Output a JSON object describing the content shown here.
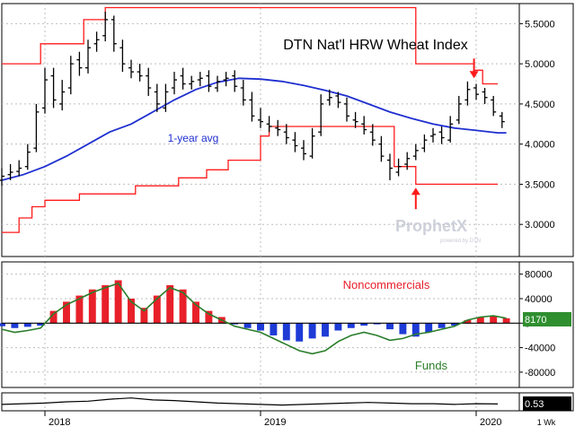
{
  "chart_data": [
    {
      "type": "line",
      "title": "DTN Nat'l HRW Wheat Index",
      "annotations": [
        "1-year avg"
      ],
      "ylim": [
        2.6,
        5.75
      ],
      "y_ticks": [
        "5.5000",
        "5.0000",
        "4.5000",
        "4.0000",
        "3.5000",
        "3.0000"
      ],
      "y_tick_values": [
        5.5,
        5.0,
        4.5,
        4.0,
        3.5,
        3.0
      ],
      "x_ticks": [
        "2018",
        "2019",
        "2020"
      ],
      "x_tick_values": [
        2018.0,
        2019.0,
        2020.0
      ],
      "xlim": [
        2017.8,
        2020.2
      ],
      "grid": true,
      "colors": {
        "price": "#000000",
        "average": "#1f2fd0",
        "bands": "#ff1a1a",
        "arrow": "#ff1a1a"
      },
      "price_weekly": {
        "x": [
          2017.8,
          2017.84,
          2017.88,
          2017.92,
          2017.96,
          2018.0,
          2018.04,
          2018.08,
          2018.12,
          2018.16,
          2018.2,
          2018.24,
          2018.28,
          2018.32,
          2018.36,
          2018.4,
          2018.44,
          2018.48,
          2018.52,
          2018.56,
          2018.6,
          2018.64,
          2018.68,
          2018.72,
          2018.76,
          2018.8,
          2018.84,
          2018.88,
          2018.92,
          2018.96,
          2019.0,
          2019.04,
          2019.08,
          2019.12,
          2019.16,
          2019.2,
          2019.24,
          2019.28,
          2019.32,
          2019.36,
          2019.4,
          2019.44,
          2019.48,
          2019.52,
          2019.56,
          2019.6,
          2019.64,
          2019.68,
          2019.72,
          2019.76,
          2019.8,
          2019.84,
          2019.88,
          2019.92,
          2019.96,
          2020.0,
          2020.04,
          2020.08,
          2020.12
        ],
        "open": [
          3.55,
          3.62,
          3.66,
          3.72,
          3.95,
          4.45,
          4.85,
          4.5,
          4.7,
          5.05,
          4.95,
          5.25,
          5.35,
          5.55,
          5.2,
          4.95,
          4.9,
          4.85,
          4.65,
          4.45,
          4.7,
          4.85,
          4.75,
          4.8,
          4.85,
          4.7,
          4.8,
          4.85,
          4.7,
          4.55,
          4.3,
          4.25,
          4.2,
          4.15,
          4.05,
          3.95,
          3.85,
          4.15,
          4.55,
          4.6,
          4.5,
          4.3,
          4.25,
          4.15,
          4.0,
          3.8,
          3.65,
          3.75,
          3.85,
          3.95,
          4.1,
          4.15,
          4.05,
          4.3,
          4.55,
          4.7,
          4.65,
          4.55,
          4.35
        ],
        "close": [
          3.6,
          3.65,
          3.7,
          3.9,
          4.4,
          4.8,
          4.55,
          4.65,
          5.0,
          4.95,
          5.2,
          5.3,
          5.55,
          5.25,
          5.0,
          4.9,
          4.85,
          4.7,
          4.5,
          4.65,
          4.8,
          4.75,
          4.78,
          4.82,
          4.72,
          4.78,
          4.82,
          4.72,
          4.55,
          4.35,
          4.28,
          4.22,
          4.18,
          4.08,
          3.98,
          3.88,
          4.1,
          4.5,
          4.58,
          4.52,
          4.35,
          4.28,
          4.18,
          4.05,
          3.85,
          3.7,
          3.72,
          3.82,
          3.92,
          4.05,
          4.12,
          4.08,
          4.25,
          4.5,
          4.68,
          4.62,
          4.58,
          4.4,
          4.28
        ],
        "high": [
          3.7,
          3.75,
          3.8,
          4.0,
          4.5,
          4.95,
          4.95,
          4.8,
          5.1,
          5.15,
          5.3,
          5.4,
          5.65,
          5.6,
          5.3,
          5.05,
          5.0,
          4.95,
          4.75,
          4.75,
          4.9,
          4.95,
          4.85,
          4.9,
          4.92,
          4.85,
          4.9,
          4.92,
          4.8,
          4.65,
          4.45,
          4.35,
          4.3,
          4.25,
          4.15,
          4.05,
          4.2,
          4.62,
          4.68,
          4.65,
          4.58,
          4.4,
          4.35,
          4.25,
          4.1,
          3.88,
          3.82,
          3.9,
          4.0,
          4.12,
          4.2,
          4.22,
          4.35,
          4.6,
          4.78,
          4.75,
          4.7,
          4.6,
          4.4
        ],
        "low": [
          3.48,
          3.55,
          3.6,
          3.68,
          3.9,
          4.38,
          4.45,
          4.42,
          4.62,
          4.85,
          4.88,
          5.15,
          5.28,
          5.15,
          4.9,
          4.82,
          4.78,
          4.6,
          4.4,
          4.4,
          4.62,
          4.68,
          4.68,
          4.72,
          4.65,
          4.65,
          4.72,
          4.65,
          4.48,
          4.28,
          4.2,
          4.15,
          4.1,
          4.0,
          3.9,
          3.8,
          3.82,
          4.1,
          4.48,
          4.45,
          4.28,
          4.2,
          4.12,
          3.98,
          3.78,
          3.55,
          3.6,
          3.68,
          3.8,
          3.9,
          4.02,
          4.0,
          4.02,
          4.25,
          4.48,
          4.55,
          4.5,
          4.35,
          4.2
        ]
      },
      "series": [
        {
          "name": "1-year avg",
          "x": [
            2017.8,
            2017.9,
            2018.0,
            2018.1,
            2018.2,
            2018.3,
            2018.4,
            2018.5,
            2018.6,
            2018.7,
            2018.8,
            2018.9,
            2019.0,
            2019.1,
            2019.2,
            2019.3,
            2019.4,
            2019.5,
            2019.6,
            2019.7,
            2019.8,
            2019.9,
            2020.0,
            2020.1,
            2020.14
          ],
          "values": [
            3.55,
            3.62,
            3.72,
            3.85,
            4.0,
            4.15,
            4.25,
            4.4,
            4.55,
            4.68,
            4.77,
            4.82,
            4.81,
            4.78,
            4.73,
            4.67,
            4.6,
            4.5,
            4.4,
            4.32,
            4.25,
            4.2,
            4.17,
            4.14,
            4.14
          ]
        },
        {
          "name": "",
          "x": [
            2017.8,
            2017.98,
            2017.98,
            2018.18,
            2018.18,
            2018.28,
            2018.28,
            2018.65,
            2018.65,
            2018.72,
            2018.72,
            2018.9,
            2018.9,
            2018.99,
            2018.99,
            2019.02,
            2019.02,
            2019.12,
            2019.12,
            2019.2,
            2019.2,
            2019.3,
            2019.3,
            2019.4,
            2019.4,
            2019.62,
            2019.62,
            2019.72,
            2019.72,
            2019.99,
            2019.99,
            2020.03,
            2020.03,
            2020.1
          ],
          "values": [
            5.0,
            5.0,
            5.25,
            5.25,
            5.55,
            5.55,
            5.7,
            5.7,
            5.7,
            5.7,
            5.7,
            5.7,
            5.7,
            5.7,
            5.7,
            5.7,
            5.7,
            5.7,
            5.7,
            5.7,
            5.7,
            5.7,
            5.7,
            5.7,
            5.7,
            5.7,
            5.7,
            5.7,
            5.0,
            5.0,
            4.92,
            4.92,
            4.75,
            4.75
          ]
        },
        {
          "name": "",
          "x": [
            2017.8,
            2017.88,
            2017.88,
            2017.94,
            2017.94,
            2018.0,
            2018.0,
            2018.16,
            2018.16,
            2018.42,
            2018.42,
            2018.62,
            2018.62,
            2018.75,
            2018.75,
            2018.85,
            2018.85,
            2019.0,
            2019.0,
            2019.04,
            2019.04,
            2019.3,
            2019.3,
            2019.62,
            2019.62,
            2019.72,
            2019.72,
            2020.1
          ],
          "values": [
            2.9,
            2.9,
            3.08,
            3.08,
            3.22,
            3.22,
            3.3,
            3.3,
            3.38,
            3.38,
            3.48,
            3.48,
            3.58,
            3.58,
            3.68,
            3.68,
            3.8,
            3.8,
            4.1,
            4.1,
            4.22,
            4.22,
            4.22,
            4.22,
            3.72,
            3.72,
            3.5,
            3.5
          ]
        }
      ]
    },
    {
      "type": "bar",
      "annotations": [
        "Noncommercials",
        "Funds"
      ],
      "ylim": [
        -105000,
        100000
      ],
      "y_ticks": [
        "80000",
        "40000",
        "0",
        "-40000",
        "-80000"
      ],
      "y_tick_values": [
        80000,
        40000,
        0,
        -40000,
        -80000
      ],
      "value_label": "8170",
      "colors": {
        "positive_bars": "#e8202a",
        "negative_bars": "#1e3bd6",
        "funds_line": "#2a7d2a",
        "value_badge": "#2f8f2f"
      },
      "series": [
        {
          "name": "Noncommercials",
          "x": [
            2017.8,
            2017.86,
            2017.92,
            2017.98,
            2018.04,
            2018.1,
            2018.16,
            2018.22,
            2018.28,
            2018.34,
            2018.4,
            2018.46,
            2018.52,
            2018.58,
            2018.64,
            2018.7,
            2018.76,
            2018.82,
            2018.88,
            2018.94,
            2019.0,
            2019.06,
            2019.12,
            2019.18,
            2019.24,
            2019.3,
            2019.36,
            2019.42,
            2019.48,
            2019.54,
            2019.6,
            2019.66,
            2019.72,
            2019.78,
            2019.84,
            2019.9,
            2019.96,
            2020.02,
            2020.08,
            2020.14
          ],
          "values": [
            -5000,
            -8000,
            -6000,
            -4000,
            20000,
            35000,
            45000,
            55000,
            62000,
            70000,
            40000,
            25000,
            45000,
            62000,
            55000,
            35000,
            20000,
            10000,
            -2000,
            -8000,
            -12000,
            -20000,
            -28000,
            -30000,
            -25000,
            -22000,
            -12000,
            -8000,
            -4000,
            -2000,
            -10000,
            -18000,
            -22000,
            -15000,
            -8000,
            -4000,
            5000,
            10000,
            12000,
            8000
          ]
        },
        {
          "name": "Funds",
          "x": [
            2017.8,
            2017.86,
            2017.92,
            2017.98,
            2018.04,
            2018.1,
            2018.16,
            2018.22,
            2018.28,
            2018.34,
            2018.4,
            2018.46,
            2018.52,
            2018.58,
            2018.64,
            2018.7,
            2018.76,
            2018.82,
            2018.88,
            2018.94,
            2019.0,
            2019.06,
            2019.12,
            2019.18,
            2019.24,
            2019.3,
            2019.36,
            2019.42,
            2019.48,
            2019.54,
            2019.6,
            2019.66,
            2019.72,
            2019.78,
            2019.84,
            2019.9,
            2019.96,
            2020.02,
            2020.08,
            2020.14
          ],
          "values": [
            -10000,
            -15000,
            -12000,
            -8000,
            15000,
            30000,
            40000,
            50000,
            58000,
            65000,
            35000,
            20000,
            40000,
            58000,
            50000,
            30000,
            15000,
            5000,
            -5000,
            -10000,
            -15000,
            -25000,
            -35000,
            -45000,
            -50000,
            -45000,
            -30000,
            -20000,
            -15000,
            -20000,
            -28000,
            -25000,
            -18000,
            -15000,
            -10000,
            -5000,
            5000,
            10000,
            12000,
            8000
          ]
        }
      ]
    },
    {
      "type": "line",
      "annotations": [
        "1 Wk"
      ],
      "value_label": "0.53",
      "series": [
        {
          "name": "",
          "x": [
            2017.8,
            2017.9,
            2018.0,
            2018.1,
            2018.2,
            2018.3,
            2018.4,
            2018.5,
            2018.6,
            2018.7,
            2018.8,
            2018.9,
            2019.0,
            2019.1,
            2019.2,
            2019.3,
            2019.4,
            2019.5,
            2019.6,
            2019.7,
            2019.8,
            2019.9,
            2020.0,
            2020.1
          ],
          "values": [
            0.5,
            0.55,
            0.6,
            0.7,
            0.75,
            0.9,
            1.0,
            0.85,
            0.8,
            0.7,
            0.6,
            0.55,
            0.5,
            0.45,
            0.5,
            0.55,
            0.6,
            0.65,
            0.6,
            0.55,
            0.55,
            0.5,
            0.55,
            0.53
          ]
        }
      ]
    }
  ]
}
